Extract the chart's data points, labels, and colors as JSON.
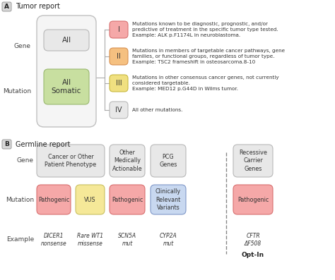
{
  "bg_color": "#ffffff",
  "section_A_label": "A",
  "section_A_title": "Tumor report",
  "section_B_label": "B",
  "section_B_title": "Germline report",
  "tumor_all_box": {
    "label": "All",
    "color": "#e8e8e8",
    "border": "#b8b8b8"
  },
  "tumor_somatic_box": {
    "label": "All\nSomatic",
    "color": "#c8dfa0",
    "border": "#9ab870"
  },
  "roman_boxes": [
    {
      "label": "I",
      "color": "#f5a8a8",
      "border": "#d87070",
      "text": "Mutations known to be diagnostic, prognostic, and/or\npredictive of treatment in the specific tumor type tested.\nExample: ALK p.F1174L in neuroblastoma."
    },
    {
      "label": "II",
      "color": "#f5c080",
      "border": "#d89050",
      "text": "Mutations in members of targetable cancer pathways, gene\nfamilies, or functional groups, regardless of tumor type.\nExample: TSC2 frameshift in osteosarcoma.8-10"
    },
    {
      "label": "III",
      "color": "#f0e080",
      "border": "#c8b840",
      "text": "Mutations in other consensus cancer genes, not currently\nconsidered targetable.\nExample: MED12 p.G44D in Wilms tumor."
    },
    {
      "label": "IV",
      "color": "#e8e8e8",
      "border": "#b8b8b8",
      "text": "All other mutations."
    }
  ],
  "germline_gene_boxes": [
    {
      "label": "Cancer or Other\nPatient Phenotype",
      "color": "#e8e8e8",
      "border": "#b8b8b8"
    },
    {
      "label": "Other\nMedically\nActionable",
      "color": "#e8e8e8",
      "border": "#b8b8b8"
    },
    {
      "label": "PCG\nGenes",
      "color": "#e8e8e8",
      "border": "#b8b8b8"
    },
    {
      "label": "Recessive\nCarrier\nGenes",
      "color": "#e8e8e8",
      "border": "#b8b8b8"
    }
  ],
  "germline_mut_boxes": [
    {
      "label": "Pathogenic",
      "color": "#f5a8a8",
      "border": "#d87070"
    },
    {
      "label": "VUS",
      "color": "#f5e898",
      "border": "#c8c060"
    },
    {
      "label": "Pathogenic",
      "color": "#f5a8a8",
      "border": "#d87070"
    },
    {
      "label": "Clinically\nRelevant\nVariants",
      "color": "#c8d8f0",
      "border": "#8098c8"
    },
    {
      "label": "Pathogenic",
      "color": "#f5a8a8",
      "border": "#d87070"
    }
  ],
  "germline_examples": [
    "DICER1\nnonsense",
    "Rare WT1\nmissense",
    "SCN5A\nmut",
    "CYP2A\nmut",
    "CFTR\nΔF508"
  ],
  "label_color": "#444444",
  "line_color": "#aaaaaa",
  "dash_color": "#888888"
}
